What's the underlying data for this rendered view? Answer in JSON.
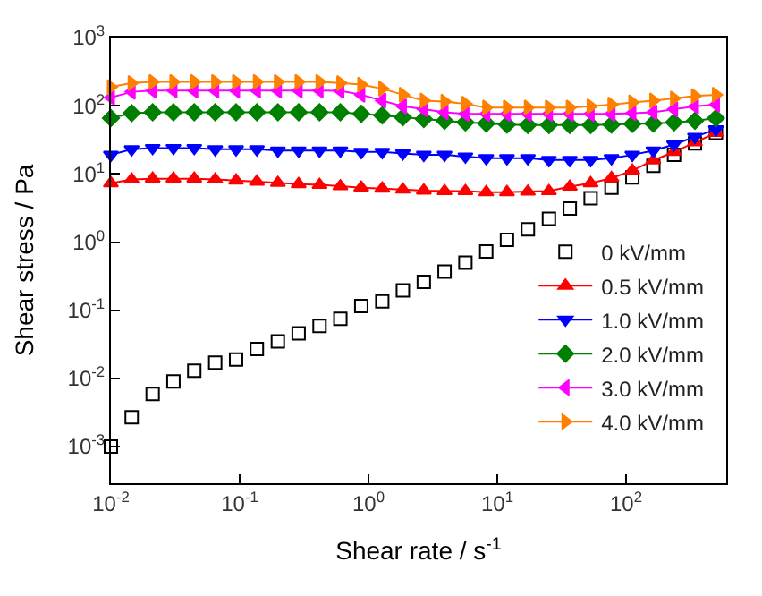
{
  "chart_data": {
    "type": "scatter",
    "xlabel": "Shear rate / s$^{-1}$",
    "ylabel": "Shear stress / Pa",
    "log": "xy",
    "legend": "bottom right",
    "x": [
      0.01,
      0.0145,
      0.0211,
      0.0306,
      0.0444,
      0.0646,
      0.0938,
      0.136,
      0.198,
      0.287,
      0.417,
      0.605,
      0.879,
      1.28,
      1.85,
      2.69,
      3.9,
      5.66,
      8.22,
      11.9,
      17.3,
      25.2,
      36.6,
      53.1,
      77.1,
      112,
      163,
      236,
      343,
      499
    ],
    "xlim": [
      0.01,
      600
    ],
    "ylim": [
      0.00029,
      1000
    ],
    "xticks": [
      {
        "value": 0.01,
        "label": "10$^{-2}$"
      },
      {
        "value": 0.1,
        "label": "10$^{-1}$"
      },
      {
        "value": 1,
        "label": "10$^{0}$"
      },
      {
        "value": 10,
        "label": "10$^{1}$"
      },
      {
        "value": 100,
        "label": "10$^{2}$"
      }
    ],
    "yticks": [
      {
        "value": 0.001,
        "label": "10$^{-3}$"
      },
      {
        "value": 0.01,
        "label": "10$^{-2}$"
      },
      {
        "value": 0.1,
        "label": "10$^{-1}$"
      },
      {
        "value": 1,
        "label": "10$^{0}$"
      },
      {
        "value": 10,
        "label": "10$^{1}$"
      },
      {
        "value": 100,
        "label": "10$^{2}$"
      },
      {
        "value": 1000,
        "label": "10$^{3}$"
      }
    ],
    "series": [
      {
        "name": "0 kV/mm",
        "color": "#000000",
        "marker": "square-open",
        "line_style": "none",
        "values": [
          0.001,
          0.0027,
          0.0059,
          0.009,
          0.013,
          0.017,
          0.019,
          0.027,
          0.035,
          0.046,
          0.059,
          0.075,
          0.115,
          0.135,
          0.195,
          0.26,
          0.37,
          0.5,
          0.73,
          1.08,
          1.54,
          2.2,
          3.1,
          4.4,
          6.3,
          8.9,
          13.2,
          19,
          28,
          40
        ]
      },
      {
        "name": "0.5 kV/mm",
        "color": "#ff0000",
        "type": "line",
        "marker": "triangle-up",
        "line_style": "solid",
        "values": [
          7.3,
          8.3,
          8.5,
          8.5,
          8.5,
          8.3,
          8.0,
          7.7,
          7.4,
          7.1,
          6.9,
          6.6,
          6.3,
          6.1,
          5.9,
          5.7,
          5.6,
          5.6,
          5.4,
          5.4,
          5.5,
          5.6,
          6.5,
          7.3,
          8.7,
          11.2,
          15.8,
          21,
          29,
          40
        ]
      },
      {
        "name": "1.0 kV/mm",
        "color": "#0000ff",
        "type": "line",
        "marker": "triangle-down",
        "line_style": "solid",
        "values": [
          19,
          23,
          24,
          24,
          24,
          23,
          23,
          23,
          22,
          22,
          22,
          22,
          21,
          21,
          20,
          19,
          19,
          18,
          17,
          17,
          17,
          16,
          16,
          16,
          17,
          19,
          22,
          27,
          35,
          45
        ]
      },
      {
        "name": "2.0 kV/mm",
        "color": "#008000",
        "type": "line",
        "marker": "diamond",
        "line_style": "solid",
        "values": [
          66,
          78,
          80,
          80,
          80,
          80,
          80,
          80,
          80,
          80,
          80,
          80,
          76,
          72,
          68,
          64,
          60,
          57,
          55,
          53,
          52,
          52,
          52,
          52,
          53,
          54,
          55,
          57,
          60,
          66
        ]
      },
      {
        "name": "3.0 kV/mm",
        "color": "#ff00ff",
        "type": "line",
        "marker": "triangle-left",
        "line_style": "solid",
        "values": [
          132,
          160,
          167,
          167,
          167,
          167,
          167,
          167,
          167,
          167,
          167,
          165,
          145,
          119,
          98,
          89,
          80,
          76,
          76,
          76,
          76,
          76,
          76,
          76,
          76,
          78,
          80,
          89,
          98,
          104
        ]
      },
      {
        "name": "4.0 kV/mm",
        "color": "#ff8000",
        "type": "line",
        "marker": "triangle-right",
        "line_style": "solid",
        "values": [
          188,
          215,
          224,
          224,
          224,
          224,
          224,
          224,
          224,
          224,
          224,
          215,
          204,
          178,
          145,
          119,
          115,
          107,
          94,
          94,
          94,
          94,
          94,
          98,
          104,
          112,
          119,
          128,
          139,
          145
        ]
      }
    ]
  }
}
